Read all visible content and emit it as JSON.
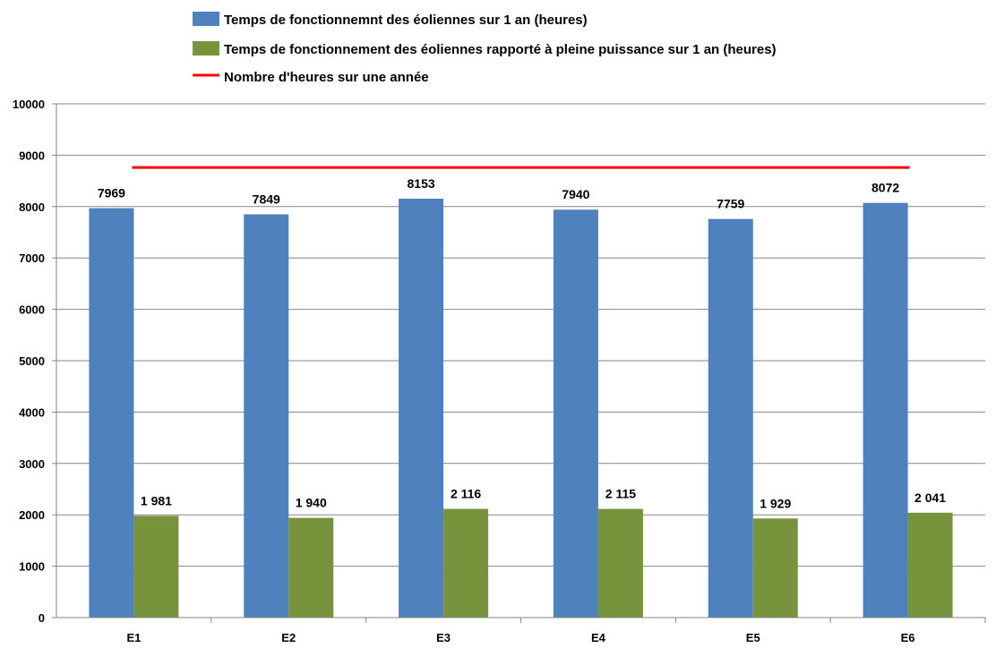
{
  "chart_data": {
    "type": "bar",
    "title": "",
    "xlabel": "",
    "ylabel": "",
    "ylim": [
      0,
      10000
    ],
    "yticks": [
      0,
      1000,
      2000,
      3000,
      4000,
      5000,
      6000,
      7000,
      8000,
      9000,
      10000
    ],
    "grid": true,
    "legend_position": "top-left",
    "categories": [
      "E1",
      "E2",
      "E3",
      "E4",
      "E5",
      "E6"
    ],
    "series": [
      {
        "name": "Temps de fonctionnemnt des éoliennes sur 1 an (heures)",
        "color": "#4F81BD",
        "values": [
          7969,
          7849,
          8153,
          7940,
          7759,
          8072
        ],
        "labels": [
          "7969",
          "7849",
          "8153",
          "7940",
          "7759",
          "8072"
        ]
      },
      {
        "name": "Temps de fonctionnement des éoliennes rapporté à pleine puissance sur 1 an (heures)",
        "color": "#77933C",
        "values": [
          1981,
          1940,
          2116,
          2115,
          1929,
          2041
        ],
        "labels": [
          "1 981",
          "1 940",
          "2 116",
          "2 115",
          "1 929",
          "2 041"
        ]
      }
    ],
    "reference_line": {
      "name": "Nombre d'heures sur une année",
      "color": "#FF0000",
      "value": 8760
    }
  }
}
